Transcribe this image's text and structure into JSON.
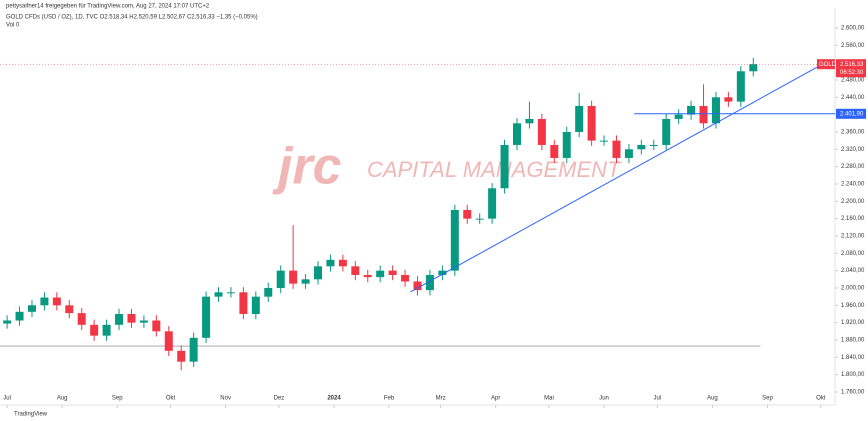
{
  "chart_data": {
    "type": "candlestick",
    "title": "pettysaifner14 freigegeben für TradingView.com, Aug 27, 2024 17:07 UTC+2",
    "subtitle": "GOLD CFDs (USD / OZ), 1D, TVC  O2.518,34 H2.520,59 L2.502,67 C2.516,33 −1,35 (−0,05%)",
    "volume_label": "Vol  0",
    "watermark": "jrc",
    "watermark_sub": "CAPITAL MANAGEMENT",
    "footer": "TradingView",
    "symbol_tag": "GOLD",
    "countdown": "06:52:30",
    "last_price": {
      "value": 2516.33,
      "label": "2.516,33"
    },
    "up_color": "#089981",
    "down_color": "#f23645",
    "x": [
      0,
      7,
      14,
      21,
      28,
      35,
      42,
      49,
      56,
      63,
      70,
      77,
      84,
      91,
      98,
      105,
      112,
      119,
      126,
      133,
      140,
      147,
      154,
      161,
      168,
      175,
      182,
      189,
      196,
      203,
      210,
      217,
      224,
      231,
      238,
      245,
      252,
      259,
      266,
      273,
      280,
      287,
      294,
      301,
      308,
      315,
      322,
      329,
      336,
      343,
      350,
      357,
      364,
      371,
      378,
      385,
      392,
      399,
      406,
      413,
      420
    ],
    "open": [
      1918,
      1925,
      1945,
      1960,
      1978,
      1960,
      1942,
      1915,
      1890,
      1915,
      1940,
      1920,
      1925,
      1900,
      1855,
      1830,
      1885,
      1980,
      1990,
      1990,
      1940,
      1980,
      2000,
      2040,
      2010,
      2020,
      2050,
      2065,
      2050,
      2030,
      2025,
      2040,
      2030,
      2015,
      1995,
      2030,
      2040,
      2180,
      2160,
      2160,
      2230,
      2330,
      2380,
      2390,
      2330,
      2300,
      2360,
      2420,
      2340,
      2340,
      2300,
      2320,
      2330,
      2330,
      2390,
      2400,
      2420,
      2380,
      2440,
      2430,
      2500
    ],
    "high": [
      1937,
      1957,
      1972,
      1990,
      1990,
      1972,
      1954,
      1927,
      1927,
      1952,
      1952,
      1937,
      1937,
      1912,
      1867,
      1897,
      1992,
      2002,
      2002,
      2002,
      1992,
      2012,
      2052,
      2145,
      2032,
      2062,
      2077,
      2077,
      2062,
      2042,
      2052,
      2052,
      2042,
      2027,
      2042,
      2052,
      2192,
      2192,
      2172,
      2242,
      2342,
      2392,
      2430,
      2402,
      2342,
      2372,
      2450,
      2432,
      2352,
      2352,
      2332,
      2342,
      2342,
      2402,
      2412,
      2432,
      2470,
      2452,
      2452,
      2512,
      2531
    ],
    "low": [
      1906,
      1913,
      1933,
      1948,
      1948,
      1930,
      1903,
      1878,
      1878,
      1903,
      1908,
      1908,
      1888,
      1843,
      1810,
      1818,
      1873,
      1968,
      1978,
      1928,
      1928,
      1968,
      1988,
      1998,
      1998,
      2008,
      2038,
      2038,
      2018,
      2013,
      2013,
      2018,
      2003,
      1983,
      1983,
      2018,
      2028,
      2148,
      2148,
      2148,
      2218,
      2318,
      2368,
      2318,
      2288,
      2288,
      2348,
      2328,
      2328,
      2288,
      2288,
      2308,
      2318,
      2318,
      2378,
      2388,
      2368,
      2368,
      2418,
      2418,
      2488
    ],
    "close": [
      1925,
      1945,
      1960,
      1978,
      1960,
      1942,
      1915,
      1890,
      1915,
      1940,
      1920,
      1925,
      1900,
      1855,
      1830,
      1885,
      1980,
      1990,
      1990,
      1940,
      1980,
      2000,
      2040,
      2010,
      2020,
      2050,
      2065,
      2050,
      2030,
      2025,
      2040,
      2030,
      2015,
      1995,
      2030,
      2040,
      2180,
      2160,
      2160,
      2230,
      2330,
      2380,
      2390,
      2330,
      2300,
      2360,
      2420,
      2340,
      2340,
      2300,
      2320,
      2330,
      2330,
      2390,
      2400,
      2420,
      2380,
      2440,
      2430,
      2500,
      2516.33
    ],
    "resistance": {
      "value": 2401.9,
      "label": "2.401,90",
      "x": [
        353,
        466
      ],
      "color": "#2962ff"
    },
    "support": {
      "value": 1866,
      "x": [
        -4,
        424
      ],
      "color": "#9e9e9e"
    },
    "trendline": {
      "x": [
        227,
        461
      ],
      "y": [
        1991,
        2521
      ],
      "color": "#2962ff"
    },
    "xlim": [
      -4,
      466
    ],
    "ylim": [
      1730,
      2646
    ],
    "xticks": [
      {
        "value": 0,
        "label": "Jul"
      },
      {
        "value": 31,
        "label": "Aug"
      },
      {
        "value": 62,
        "label": "Sep"
      },
      {
        "value": 92,
        "label": "Okt"
      },
      {
        "value": 123,
        "label": "Nov"
      },
      {
        "value": 153,
        "label": "Dez"
      },
      {
        "value": 184,
        "label": "2024"
      },
      {
        "value": 215,
        "label": "Feb"
      },
      {
        "value": 244,
        "label": "Mrz"
      },
      {
        "value": 275,
        "label": "Apr"
      },
      {
        "value": 305,
        "label": "Mai"
      },
      {
        "value": 336,
        "label": "Jun"
      },
      {
        "value": 366,
        "label": "Jul"
      },
      {
        "value": 397,
        "label": "Aug"
      },
      {
        "value": 428,
        "label": "Sep"
      },
      {
        "value": 458,
        "label": "Okt"
      }
    ],
    "yticks": [
      {
        "value": 2600,
        "label": "2.600,00"
      },
      {
        "value": 2560,
        "label": "2.560,00"
      },
      {
        "value": 2520,
        "label": "2.520,00"
      },
      {
        "value": 2480,
        "label": "2.480,00"
      },
      {
        "value": 2440,
        "label": "2.440,00"
      },
      {
        "value": 2400,
        "label": "2.400,00"
      },
      {
        "value": 2360,
        "label": "2.360,00"
      },
      {
        "value": 2320,
        "label": "2.320,00"
      },
      {
        "value": 2280,
        "label": "2.280,00"
      },
      {
        "value": 2240,
        "label": "2.240,00"
      },
      {
        "value": 2200,
        "label": "2.200,00"
      },
      {
        "value": 2160,
        "label": "2.160,00"
      },
      {
        "value": 2120,
        "label": "2.120,00"
      },
      {
        "value": 2080,
        "label": "2.080,00"
      },
      {
        "value": 2040,
        "label": "2.040,00"
      },
      {
        "value": 2000,
        "label": "2.000,00"
      },
      {
        "value": 1960,
        "label": "1.960,00"
      },
      {
        "value": 1920,
        "label": "1.920,00"
      },
      {
        "value": 1880,
        "label": "1.880,00"
      },
      {
        "value": 1840,
        "label": "1.840,00"
      },
      {
        "value": 1800,
        "label": "1.800,00"
      },
      {
        "value": 1760,
        "label": "1.760,00"
      }
    ]
  }
}
